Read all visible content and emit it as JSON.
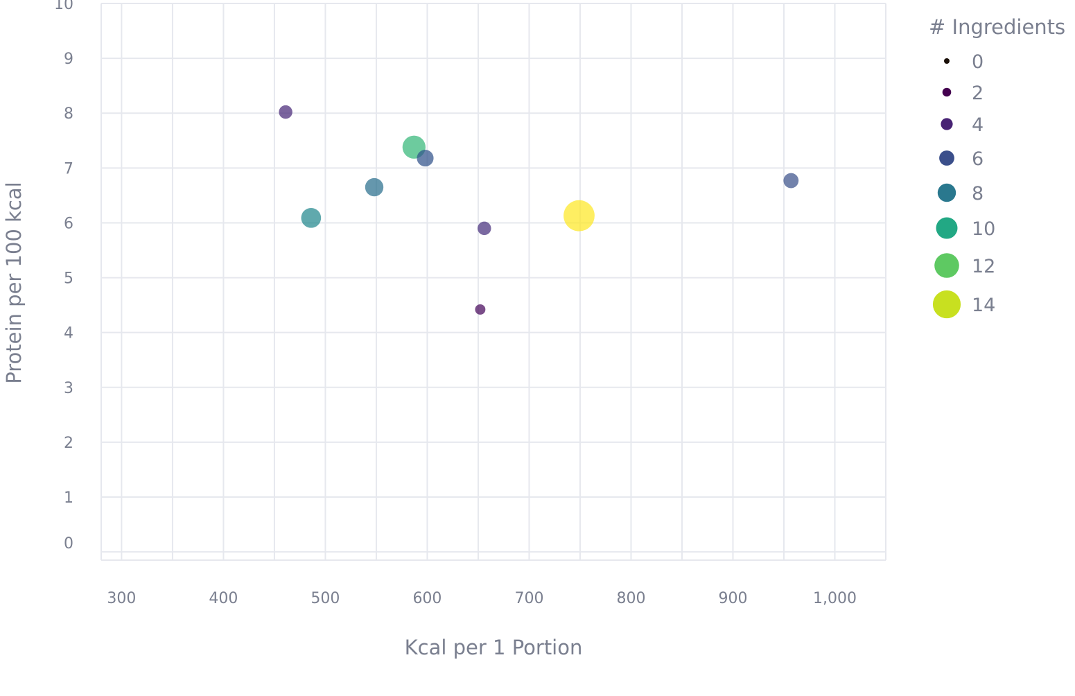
{
  "chart_data": {
    "type": "scatter",
    "xlabel": "Kcal per 1 Portion",
    "ylabel": "Protein per 100 kcal",
    "xlim": [
      280,
      1050
    ],
    "ylim": [
      -0.15,
      10
    ],
    "x_ticks": [
      300,
      400,
      500,
      600,
      700,
      800,
      900,
      1000
    ],
    "x_tick_labels": [
      "300",
      "400",
      "500",
      "600",
      "700",
      "800",
      "900",
      "1,000"
    ],
    "y_ticks": [
      0,
      1,
      2,
      3,
      4,
      5,
      6,
      7,
      8,
      9,
      10
    ],
    "y_tick_labels": [
      "0",
      "1",
      "2",
      "3",
      "4",
      "5",
      "6",
      "7",
      "8",
      "9",
      "10"
    ],
    "grid": true,
    "size_and_color_encoding": "# Ingredients",
    "points": [
      {
        "x": 461,
        "y": 8.02,
        "ingredients": 5,
        "color": "#482878"
      },
      {
        "x": 587,
        "y": 7.38,
        "ingredients": 11,
        "color": "#35b779"
      },
      {
        "x": 598,
        "y": 7.18,
        "ingredients": 7,
        "color": "#31528b"
      },
      {
        "x": 548,
        "y": 6.65,
        "ingredients": 8,
        "color": "#2a6f8e"
      },
      {
        "x": 486,
        "y": 6.09,
        "ingredients": 9,
        "color": "#23888e"
      },
      {
        "x": 656,
        "y": 5.9,
        "ingredients": 5,
        "color": "#472f7d"
      },
      {
        "x": 652,
        "y": 4.42,
        "ingredients": 3,
        "color": "#46085c"
      },
      {
        "x": 749,
        "y": 6.13,
        "ingredients": 16,
        "color": "#fde725"
      },
      {
        "x": 957,
        "y": 6.77,
        "ingredients": 6,
        "color": "#3b528b"
      }
    ],
    "legend": {
      "title": "# Ingredients",
      "position": "right",
      "items": [
        {
          "label": "0",
          "value": 0,
          "color": "#1a0f08"
        },
        {
          "label": "2",
          "value": 2,
          "color": "#44014f"
        },
        {
          "label": "4",
          "value": 4,
          "color": "#482374"
        },
        {
          "label": "6",
          "value": 6,
          "color": "#3b4f8b"
        },
        {
          "label": "8",
          "value": 8,
          "color": "#2a788e"
        },
        {
          "label": "10",
          "value": 10,
          "color": "#22a884"
        },
        {
          "label": "12",
          "value": 12,
          "color": "#5ec962"
        },
        {
          "label": "14",
          "value": 14,
          "color": "#c8e020"
        }
      ]
    }
  }
}
